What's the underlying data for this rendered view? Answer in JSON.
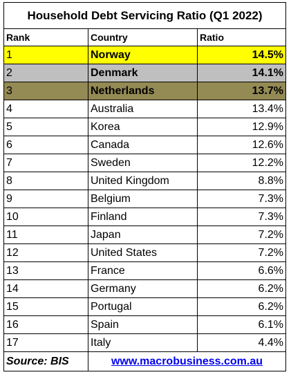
{
  "header": {
    "title": "Household Debt Servicing Ratio (Q1 2022)"
  },
  "table": {
    "columns": [
      "Rank",
      "Country",
      "Ratio"
    ],
    "rows": [
      [
        "1",
        "Norway",
        "14.5%"
      ],
      [
        "2",
        "Denmark",
        "14.1%"
      ],
      [
        "3",
        "Netherlands",
        "13.7%"
      ],
      [
        "4",
        "Australia",
        "13.4%"
      ],
      [
        "5",
        "Korea",
        "12.9%"
      ],
      [
        "6",
        "Canada",
        "12.6%"
      ],
      [
        "7",
        "Sweden",
        "12.2%"
      ],
      [
        "8",
        "United Kingdom",
        "8.8%"
      ],
      [
        "9",
        "Belgium",
        "7.3%"
      ],
      [
        "10",
        "Finland",
        "7.3%"
      ],
      [
        "11",
        "Japan",
        "7.2%"
      ],
      [
        "12",
        "United States",
        "7.2%"
      ],
      [
        "13",
        "France",
        "6.6%"
      ],
      [
        "14",
        "Germany",
        "6.2%"
      ],
      [
        "15",
        "Portugal",
        "6.2%"
      ],
      [
        "16",
        "Spain",
        "6.1%"
      ],
      [
        "17",
        "Italy",
        "4.4%"
      ]
    ]
  },
  "footer": {
    "source": "Source: BIS",
    "link": "www.macrobusiness.com.au"
  }
}
